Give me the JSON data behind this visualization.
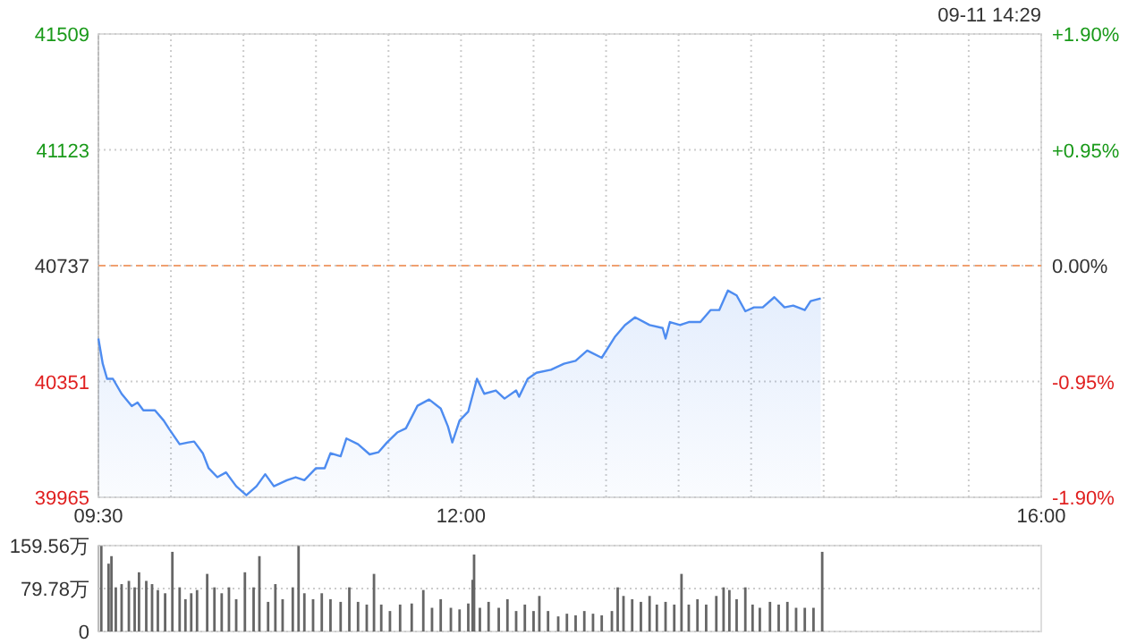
{
  "chart_data": [
    {
      "type": "area",
      "annotations": [
        "09-11 14:29"
      ],
      "grid": true,
      "marker": "none",
      "line_style": "solid",
      "xlim": [
        9.5,
        16
      ],
      "xticks": [
        {
          "value": 9.5,
          "label": "09:30"
        },
        {
          "value": 10,
          "label": null
        },
        {
          "value": 10.5,
          "label": null
        },
        {
          "value": 11,
          "label": null
        },
        {
          "value": 11.5,
          "label": null
        },
        {
          "value": 12,
          "label": "12:00"
        },
        {
          "value": 12.5,
          "label": null
        },
        {
          "value": 13,
          "label": null
        },
        {
          "value": 13.5,
          "label": null
        },
        {
          "value": 14,
          "label": null
        },
        {
          "value": 14.5,
          "label": null
        },
        {
          "value": 15,
          "label": null
        },
        {
          "value": 15.5,
          "label": null
        },
        {
          "value": 16,
          "label": "16:00"
        }
      ],
      "ylim": [
        39965,
        41509
      ],
      "yticks": [
        39965,
        40351,
        40737,
        41123,
        41509
      ],
      "y2lim": [
        -1.9,
        1.9
      ],
      "y2ticks": [
        {
          "value": -1.9,
          "label": "-1.90%"
        },
        {
          "value": -0.95,
          "label": "-0.95%"
        },
        {
          "value": 0,
          "label": "0.00%"
        },
        {
          "value": 0.95,
          "label": "+0.95%"
        },
        {
          "value": 1.9,
          "label": "+1.90%"
        }
      ],
      "ref_lines": [
        {
          "axis": "y",
          "value": 40737,
          "label": null,
          "color": "#f0a070",
          "line_style": "dashed"
        }
      ],
      "series": [
        {
          "color": "#4e8cf0",
          "x": [
            9.5,
            9.53,
            9.56,
            9.6,
            9.66,
            9.73,
            9.77,
            9.81,
            9.89,
            9.95,
            9.99,
            10.06,
            10.12,
            10.16,
            10.22,
            10.26,
            10.32,
            10.38,
            10.45,
            10.52,
            10.59,
            10.65,
            10.71,
            10.8,
            10.86,
            10.92,
            11.0,
            11.06,
            11.1,
            11.17,
            11.21,
            11.29,
            11.37,
            11.43,
            11.49,
            11.56,
            11.62,
            11.7,
            11.78,
            11.86,
            11.91,
            11.94,
            11.99,
            12.05,
            12.11,
            12.16,
            12.24,
            12.3,
            12.38,
            12.4,
            12.46,
            12.52,
            12.62,
            12.71,
            12.79,
            12.87,
            12.97,
            13.06,
            13.13,
            13.2,
            13.3,
            13.39,
            13.41,
            13.44,
            13.51,
            13.57,
            13.65,
            13.72,
            13.78,
            13.84,
            13.9,
            13.96,
            14.02,
            14.08,
            14.16,
            14.23,
            14.29,
            14.37,
            14.41,
            14.48
          ],
          "values": [
            40494,
            40410,
            40360,
            40360,
            40310,
            40269,
            40281,
            40255,
            40255,
            40221,
            40191,
            40142,
            40148,
            40151,
            40112,
            40062,
            40032,
            40048,
            40002,
            39972,
            40002,
            40042,
            40002,
            40022,
            40032,
            40022,
            40062,
            40062,
            40112,
            40102,
            40161,
            40142,
            40108,
            40115,
            40148,
            40181,
            40195,
            40270,
            40291,
            40261,
            40201,
            40148,
            40221,
            40251,
            40360,
            40310,
            40321,
            40294,
            40321,
            40300,
            40360,
            40380,
            40390,
            40410,
            40420,
            40454,
            40430,
            40499,
            40539,
            40565,
            40539,
            40529,
            40494,
            40549,
            40539,
            40549,
            40549,
            40589,
            40589,
            40654,
            40638,
            40585,
            40598,
            40598,
            40632,
            40598,
            40604,
            40589,
            40619,
            40628
          ]
        }
      ]
    },
    {
      "type": "bar",
      "tick_labels": "y",
      "grid": "y",
      "xlim": [
        9.5,
        16
      ],
      "ylim": [
        0,
        159.56
      ],
      "yticks": [
        {
          "value": 0,
          "label": "0"
        },
        {
          "value": 79.78,
          "label": "79.78万"
        },
        {
          "value": 159.56,
          "label": "159.56万"
        }
      ],
      "series": [
        {
          "color": "#666666",
          "x": [
            9.52,
            9.57,
            9.59,
            9.62,
            9.66,
            9.71,
            9.75,
            9.78,
            9.83,
            9.87,
            9.91,
            9.96,
            10.01,
            10.06,
            10.1,
            10.14,
            10.18,
            10.25,
            10.3,
            10.35,
            10.4,
            10.45,
            10.51,
            10.57,
            10.61,
            10.67,
            10.72,
            10.77,
            10.84,
            10.88,
            10.92,
            10.98,
            11.04,
            11.1,
            11.17,
            11.23,
            11.29,
            11.35,
            11.4,
            11.45,
            11.51,
            11.58,
            11.66,
            11.74,
            11.8,
            11.86,
            11.93,
            11.99,
            12.05,
            12.08,
            12.09,
            12.13,
            12.19,
            12.26,
            12.32,
            12.38,
            12.44,
            12.5,
            12.54,
            12.6,
            12.67,
            12.73,
            12.79,
            12.85,
            12.91,
            12.97,
            13.04,
            13.08,
            13.12,
            13.18,
            13.24,
            13.3,
            13.35,
            13.41,
            13.47,
            13.52,
            13.57,
            13.63,
            13.69,
            13.76,
            13.81,
            13.85,
            13.9,
            13.96,
            14.01,
            14.06,
            14.13,
            14.19,
            14.25,
            14.31,
            14.37,
            14.43,
            14.49
          ],
          "values": [
            159,
            126,
            140,
            82,
            88,
            94,
            82,
            110,
            94,
            88,
            77,
            71,
            148,
            82,
            60,
            71,
            77,
            107,
            82,
            71,
            82,
            60,
            110,
            82,
            140,
            55,
            88,
            60,
            82,
            159,
            71,
            60,
            71,
            60,
            55,
            82,
            55,
            50,
            107,
            50,
            38,
            50,
            52,
            77,
            44,
            60,
            44,
            41,
            52,
            96,
            143,
            44,
            55,
            44,
            60,
            38,
            50,
            38,
            66,
            38,
            28,
            33,
            30,
            38,
            33,
            30,
            38,
            82,
            66,
            60,
            55,
            66,
            50,
            55,
            50,
            107,
            50,
            60,
            50,
            66,
            82,
            77,
            60,
            82,
            50,
            44,
            55,
            50,
            55,
            44,
            44,
            44,
            148
          ]
        }
      ]
    }
  ]
}
